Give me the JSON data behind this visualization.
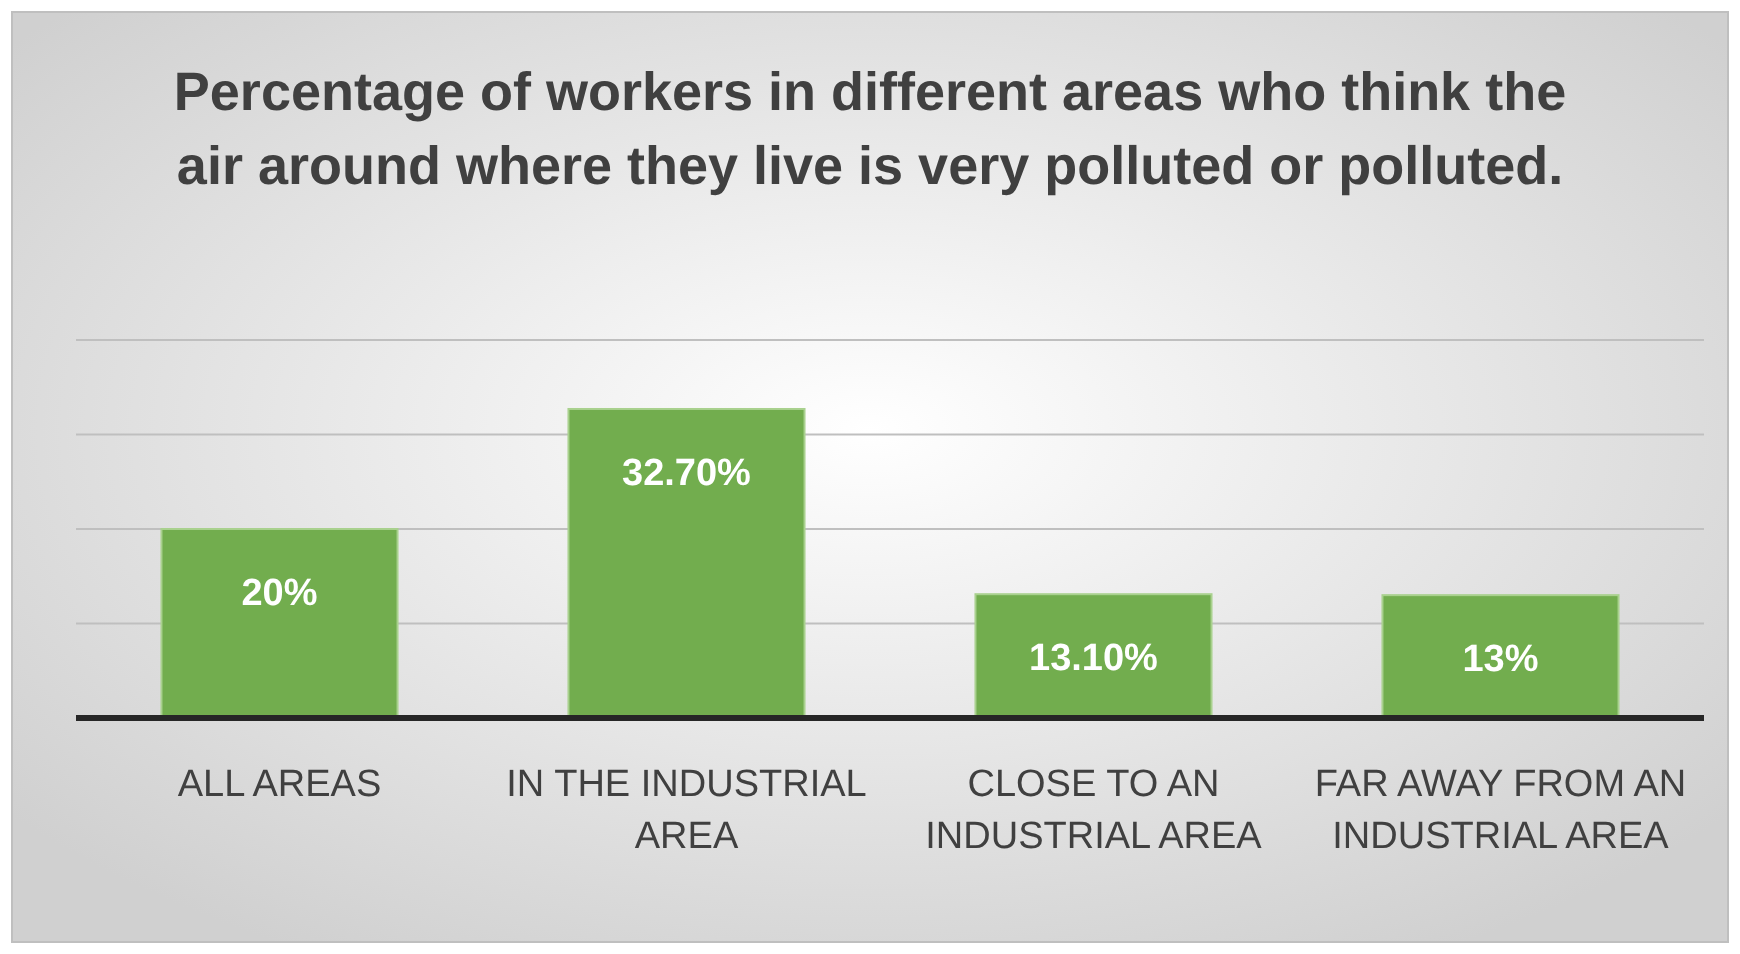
{
  "chart_data": {
    "type": "bar",
    "title": "Percentage of workers in different areas who think the air around where they live is very polluted or polluted.",
    "categories": [
      "ALL AREAS",
      "IN THE INDUSTRIAL AREA",
      "CLOSE TO AN INDUSTRIAL AREA",
      "FAR AWAY FROM AN INDUSTRIAL AREA"
    ],
    "values": [
      20,
      32.7,
      13.1,
      13
    ],
    "value_labels": [
      "20%",
      "32.70%",
      "13.10%",
      "13%"
    ],
    "color": "#72ad4e",
    "ylim": [
      0,
      40
    ],
    "yticks": [
      {
        "value": 0,
        "label": null
      },
      {
        "value": 10,
        "label": null
      },
      {
        "value": 20,
        "label": null
      },
      {
        "value": 30,
        "label": null
      },
      {
        "value": 40,
        "label": null
      }
    ],
    "grid": "y"
  }
}
